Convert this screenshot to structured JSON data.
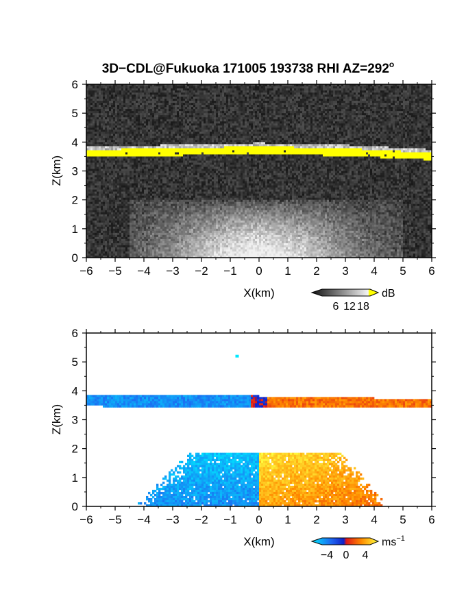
{
  "title": "3D−CDL@Fukuoka 171005 193738 RHI AZ=292",
  "title_superscript": "o",
  "colors": {
    "cloud_layer": "#ffff00",
    "background_noise": "#000000",
    "velocity_negative": "#1e64f0",
    "velocity_positive": "#ff7800"
  },
  "chart_data": [
    {
      "type": "heatmap",
      "panel": "top",
      "quantity": "SNR",
      "xlabel": "X(km)",
      "ylabel": "Z(km)",
      "xlim": [
        -6,
        6
      ],
      "ylim": [
        0,
        6
      ],
      "xticks": [
        "−6",
        "−5",
        "−4",
        "−3",
        "−2",
        "−1",
        "0",
        "1",
        "2",
        "3",
        "4",
        "5",
        "6"
      ],
      "yticks": [
        "0",
        "1",
        "2",
        "3",
        "4",
        "5",
        "6"
      ],
      "colorbar": {
        "unit": "dB",
        "ticks": [
          "6",
          "12",
          "18"
        ],
        "range": [
          0,
          21
        ],
        "palette": "grayscale-to-yellow"
      },
      "features": [
        {
          "name": "cloud base echo",
          "x_range": [
            -6,
            6
          ],
          "z_top_edges": [
            3.73,
            3.78,
            3.85,
            3.78,
            3.62
          ],
          "z_bottom_edges": [
            3.5,
            3.53,
            3.58,
            3.52,
            3.38
          ],
          "value_db": 18
        },
        {
          "name": "boundary layer aerosol",
          "x_range": [
            -4.5,
            5
          ],
          "z_range": [
            0,
            2
          ],
          "value_db_max": 12
        }
      ]
    },
    {
      "type": "heatmap",
      "panel": "bottom",
      "quantity": "Doppler velocity",
      "xlabel": "X(km)",
      "ylabel": "Z(km)",
      "xlim": [
        -6,
        6
      ],
      "ylim": [
        0,
        6
      ],
      "xticks": [
        "−6",
        "−5",
        "−4",
        "−3",
        "−2",
        "−1",
        "0",
        "1",
        "2",
        "3",
        "4",
        "5",
        "6"
      ],
      "yticks": [
        "0",
        "1",
        "2",
        "3",
        "4",
        "5",
        "6"
      ],
      "colorbar": {
        "unit": "ms",
        "unit_superscript": "−1",
        "ticks": [
          "−4",
          "0",
          "4"
        ],
        "range": [
          -5,
          5
        ],
        "palette": "cyan-blue-red-orange-yellow"
      },
      "features": [
        {
          "name": "cloud layer velocity",
          "x_range": [
            -6,
            6
          ],
          "z_range": [
            3.4,
            3.9
          ],
          "velocity_left": -3,
          "velocity_right": 2
        },
        {
          "name": "boundary layer velocity",
          "x_range": [
            -4.3,
            4.5
          ],
          "z_range": [
            0,
            1.85
          ],
          "velocity_left": -3,
          "velocity_right": 3
        },
        {
          "name": "isolated point",
          "x": -0.75,
          "z": 5.2,
          "velocity": -5
        }
      ]
    }
  ]
}
